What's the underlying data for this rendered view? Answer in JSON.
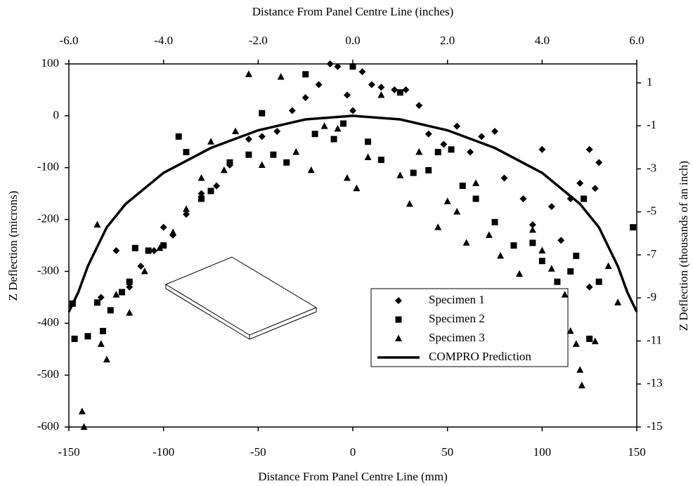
{
  "chart_data": {
    "type": "scatter",
    "xlabel": "Distance From Panel Centre Line (mm)",
    "x2label": "Distance From Panel Centre Line (inches)",
    "ylabel": "Z Deflection (microns)",
    "y2label": "Z Deflection (thousands of an inch)",
    "xlim": [
      -150,
      150
    ],
    "xticks": [
      -150,
      -100,
      -50,
      0,
      50,
      100,
      150
    ],
    "x2lim": [
      -6,
      6
    ],
    "x2ticks": [
      {
        "value": -6,
        "label": "-6.0"
      },
      {
        "value": -4,
        "label": "-4.0"
      },
      {
        "value": -2,
        "label": "-2.0"
      },
      {
        "value": 0,
        "label": "0.0"
      },
      {
        "value": 2,
        "label": "2.0"
      },
      {
        "value": 4,
        "label": "4.0"
      },
      {
        "value": 6,
        "label": "6.0"
      }
    ],
    "ylim": [
      -600,
      100
    ],
    "yticks": [
      -600,
      -500,
      -400,
      -300,
      -200,
      -100,
      0,
      100
    ],
    "y2lim": [
      -15,
      1.88
    ],
    "y2ticks": [
      1,
      -1,
      -3,
      -5,
      -7,
      -9,
      -11,
      -13,
      -15
    ],
    "grid": false,
    "series": [
      {
        "name": "Specimen 1",
        "marker": "diamond",
        "color": "#000000",
        "x": [
          -133,
          -125,
          -118,
          -112,
          -105,
          -100,
          -95,
          -88,
          -80,
          -72,
          -65,
          -55,
          -48,
          -40,
          -32,
          -25,
          -18,
          -12,
          -8,
          -3,
          0,
          5,
          10,
          15,
          22,
          28,
          35,
          40,
          48,
          55,
          62,
          68,
          75,
          80,
          90,
          100,
          105,
          115,
          120,
          125,
          128,
          130,
          125,
          110,
          95
        ],
        "values": [
          -350,
          -260,
          -330,
          -290,
          -260,
          -215,
          -230,
          -190,
          -150,
          -135,
          -95,
          -45,
          -40,
          -30,
          10,
          35,
          60,
          100,
          95,
          40,
          10,
          85,
          60,
          55,
          50,
          50,
          20,
          -35,
          -55,
          -20,
          -70,
          -40,
          -30,
          -120,
          -160,
          -65,
          -175,
          -160,
          -130,
          -65,
          -140,
          -90,
          -330,
          -240,
          -210
        ]
      },
      {
        "name": "Specimen 2",
        "marker": "square",
        "color": "#000000",
        "x": [
          -148,
          -147,
          -140,
          -135,
          -132,
          -128,
          -122,
          -118,
          -115,
          -108,
          -100,
          -92,
          -88,
          -80,
          -75,
          -65,
          -55,
          -48,
          -42,
          -35,
          -25,
          -20,
          -10,
          -5,
          0,
          8,
          15,
          25,
          32,
          40,
          45,
          52,
          58,
          65,
          75,
          85,
          95,
          100,
          108,
          115,
          118,
          122,
          125,
          130,
          148
        ],
        "values": [
          -362,
          -430,
          -425,
          -360,
          -415,
          -375,
          -340,
          -320,
          -255,
          -260,
          -250,
          -40,
          -70,
          -160,
          -145,
          -90,
          -75,
          5,
          -75,
          -90,
          80,
          -35,
          -45,
          -15,
          95,
          -50,
          -85,
          45,
          -110,
          -105,
          -70,
          -65,
          -135,
          -160,
          -205,
          -250,
          -245,
          -280,
          -320,
          -300,
          -270,
          -160,
          -430,
          -320,
          -215
        ]
      },
      {
        "name": "Specimen 3",
        "marker": "triangle",
        "color": "#000000",
        "x": [
          -143,
          -142,
          -135,
          -133,
          -130,
          -125,
          -118,
          -110,
          -102,
          -95,
          -88,
          -80,
          -75,
          -68,
          -62,
          -55,
          -48,
          -38,
          -30,
          -22,
          -15,
          -8,
          -3,
          2,
          8,
          15,
          25,
          30,
          35,
          45,
          50,
          55,
          60,
          65,
          72,
          78,
          88,
          95,
          100,
          105,
          112,
          115,
          118,
          120,
          121,
          128,
          135,
          140
        ],
        "values": [
          -570,
          -600,
          -210,
          -440,
          -470,
          -345,
          -380,
          -300,
          -255,
          -225,
          -180,
          -120,
          -50,
          -105,
          -30,
          80,
          -95,
          75,
          -70,
          -105,
          -20,
          -25,
          -120,
          -140,
          -80,
          40,
          -115,
          -170,
          -70,
          -215,
          -165,
          -185,
          -245,
          -130,
          -230,
          -270,
          -305,
          -220,
          -260,
          -295,
          -345,
          -415,
          -440,
          -490,
          -520,
          -435,
          -290,
          -360
        ]
      },
      {
        "name": "COMPRO Prediction",
        "marker": "line",
        "color": "#000000",
        "x": [
          -150,
          -145,
          -140,
          -130,
          -120,
          -100,
          -75,
          -50,
          -25,
          0,
          25,
          50,
          75,
          100,
          120,
          130,
          140,
          145,
          150
        ],
        "values": [
          -378,
          -340,
          -290,
          -215,
          -170,
          -110,
          -62,
          -28,
          -7,
          0,
          -7,
          -28,
          -62,
          -110,
          -170,
          -215,
          -290,
          -340,
          -378
        ]
      }
    ]
  }
}
